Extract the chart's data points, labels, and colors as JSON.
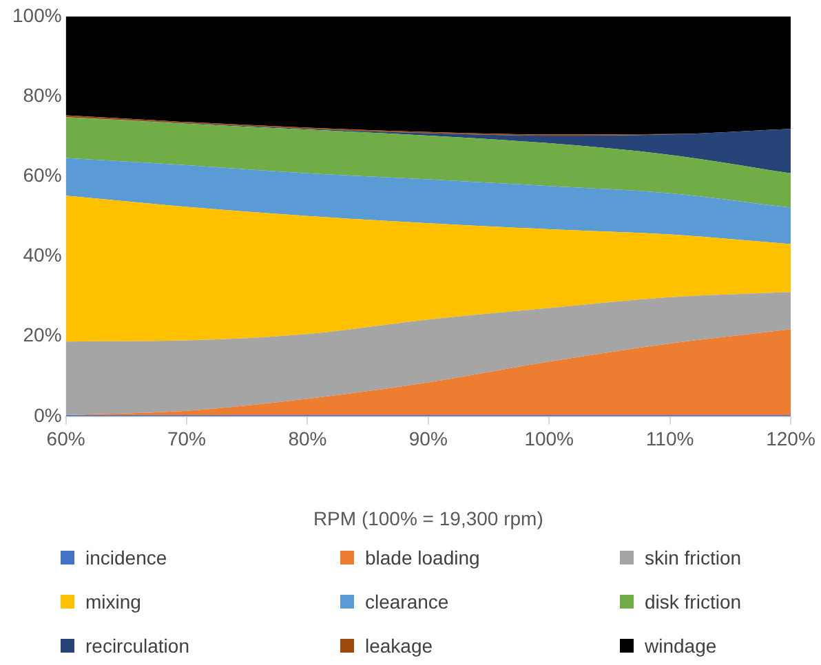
{
  "chart_data": {
    "type": "area",
    "stacked": true,
    "xlabel": "RPM (100% = 19,300 rpm)",
    "x": [
      60,
      70,
      80,
      90,
      100,
      110,
      120
    ],
    "xlim": [
      60,
      120
    ],
    "xticks": [
      {
        "value": 60,
        "label": "60%"
      },
      {
        "value": 70,
        "label": "70%"
      },
      {
        "value": 80,
        "label": "80%"
      },
      {
        "value": 90,
        "label": "90%"
      },
      {
        "value": 100,
        "label": "100%"
      },
      {
        "value": 110,
        "label": "110%"
      },
      {
        "value": 120,
        "label": "120%"
      }
    ],
    "ylim": [
      0,
      100
    ],
    "yticks": [
      {
        "value": 0,
        "label": "0%"
      },
      {
        "value": 20,
        "label": "20%"
      },
      {
        "value": 40,
        "label": "40%"
      },
      {
        "value": 60,
        "label": "60%"
      },
      {
        "value": 80,
        "label": "80%"
      },
      {
        "value": 100,
        "label": "100%"
      }
    ],
    "grid": false,
    "legend": "bottom",
    "series": [
      {
        "name": "incidence",
        "color": "#4472c4",
        "values": [
          0.3,
          0.3,
          0.3,
          0.3,
          0.3,
          0.3,
          0.3
        ]
      },
      {
        "name": "blade loading",
        "color": "#ed7d31",
        "values": [
          0,
          1.1,
          4.1,
          8.2,
          13.4,
          17.9,
          21.5
        ]
      },
      {
        "name": "skin friction",
        "color": "#a5a5a5",
        "values": [
          18.4,
          17.6,
          16.2,
          15.7,
          13.4,
          11.6,
          9.3
        ]
      },
      {
        "name": "mixing",
        "color": "#ffc000",
        "values": [
          36.5,
          33.4,
          29.5,
          24.1,
          19.7,
          15.7,
          12.0
        ]
      },
      {
        "name": "clearance",
        "color": "#5b9bd5",
        "values": [
          9.4,
          10.4,
          10.7,
          11.0,
          10.8,
          10.3,
          9.1
        ]
      },
      {
        "name": "disk friction",
        "color": "#70ad47",
        "values": [
          10.2,
          10.4,
          10.9,
          10.9,
          10.7,
          9.6,
          8.6
        ]
      },
      {
        "name": "recirculation",
        "color": "#264478",
        "values": [
          0,
          0.1,
          0.2,
          0.6,
          1.9,
          5.1,
          11.1
        ]
      },
      {
        "name": "leakage",
        "color": "#9e480e",
        "values": [
          0.5,
          0.3,
          0.3,
          0.3,
          0.3,
          0.1,
          0
        ]
      },
      {
        "name": "windage",
        "color": "#000000",
        "values": [
          24.7,
          26.4,
          27.8,
          28.9,
          29.5,
          29.4,
          28.1
        ]
      }
    ]
  }
}
